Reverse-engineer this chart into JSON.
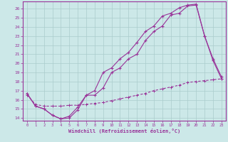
{
  "xlabel": "Windchill (Refroidissement éolien,°C)",
  "background_color": "#cce8e8",
  "grid_color": "#aacccc",
  "line_color": "#993399",
  "xlim": [
    -0.5,
    23.5
  ],
  "ylim": [
    13.7,
    26.8
  ],
  "yticks": [
    14,
    15,
    16,
    17,
    18,
    19,
    20,
    21,
    22,
    23,
    24,
    25,
    26
  ],
  "xticks": [
    0,
    1,
    2,
    3,
    4,
    5,
    6,
    7,
    8,
    9,
    10,
    11,
    12,
    13,
    14,
    15,
    16,
    17,
    18,
    19,
    20,
    21,
    22,
    23
  ],
  "line1_x": [
    0,
    1,
    2,
    3,
    4,
    5,
    6,
    7,
    8,
    9,
    10,
    11,
    12,
    13,
    14,
    15,
    16,
    17,
    18,
    19,
    20,
    21,
    22,
    23
  ],
  "line1_y": [
    16.7,
    15.3,
    15.0,
    14.3,
    13.9,
    14.0,
    14.9,
    16.5,
    16.5,
    17.3,
    19.0,
    19.5,
    20.5,
    21.0,
    22.5,
    23.5,
    24.1,
    25.3,
    25.5,
    26.3,
    26.4,
    23.0,
    20.3,
    18.3
  ],
  "line2_x": [
    0,
    1,
    2,
    3,
    4,
    5,
    6,
    7,
    8,
    9,
    10,
    11,
    12,
    13,
    14,
    15,
    16,
    17,
    18,
    19,
    20,
    21,
    22,
    23
  ],
  "line2_y": [
    16.7,
    15.3,
    15.0,
    14.3,
    13.9,
    14.2,
    15.2,
    16.5,
    17.0,
    19.0,
    19.5,
    20.5,
    21.2,
    22.3,
    23.5,
    24.1,
    25.2,
    25.5,
    26.1,
    26.4,
    26.5,
    23.0,
    20.5,
    18.5
  ],
  "line3_x": [
    0,
    1,
    2,
    3,
    4,
    5,
    6,
    7,
    8,
    9,
    10,
    11,
    12,
    13,
    14,
    15,
    16,
    17,
    18,
    19,
    20,
    21,
    22,
    23
  ],
  "line3_y": [
    16.5,
    15.5,
    15.3,
    15.3,
    15.3,
    15.4,
    15.4,
    15.5,
    15.6,
    15.7,
    15.9,
    16.1,
    16.3,
    16.5,
    16.7,
    17.0,
    17.2,
    17.4,
    17.6,
    17.9,
    18.0,
    18.1,
    18.2,
    18.3
  ]
}
